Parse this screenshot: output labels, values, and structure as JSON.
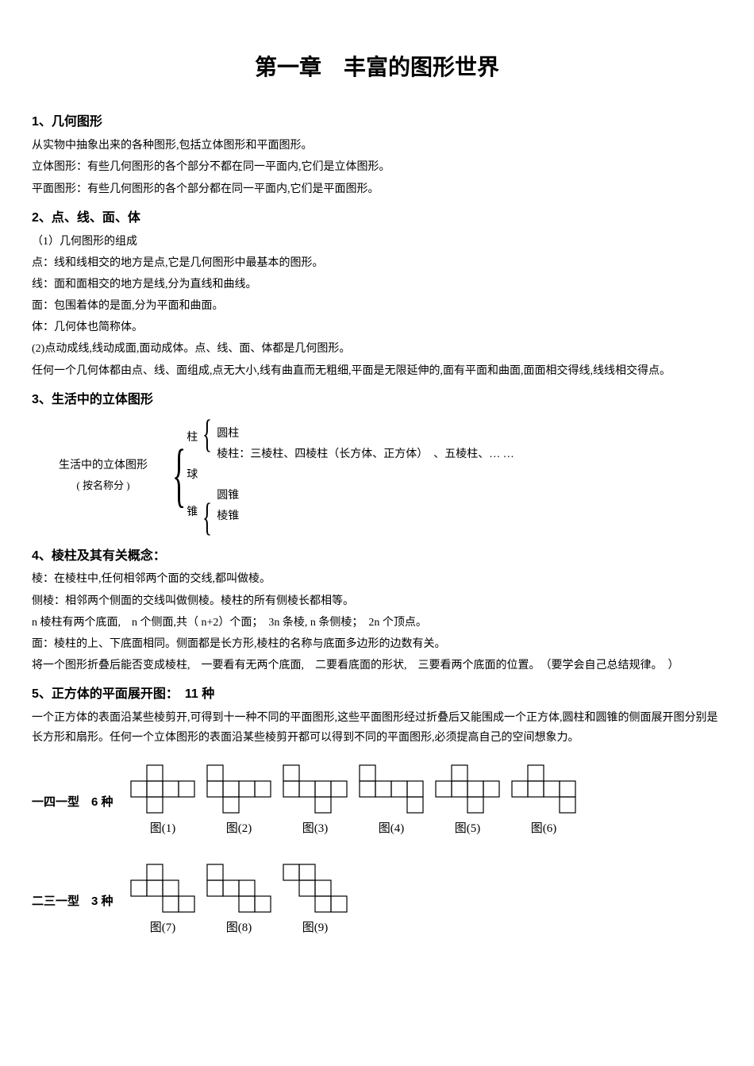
{
  "title": "第一章　丰富的图形世界",
  "s1": {
    "head": "1、几何图形",
    "p1": "从实物中抽象出来的各种图形,包括立体图形和平面图形。",
    "p2": "立体图形：有些几何图形的各个部分不都在同一平面内,它们是立体图形。",
    "p3": "平面图形：有些几何图形的各个部分都在同一平面内,它们是平面图形。"
  },
  "s2": {
    "head": "2、点、线、面、体",
    "p1": "（1）几何图形的组成",
    "p2": "点：线和线相交的地方是点,它是几何图形中最基本的图形。",
    "p3": "线：面和面相交的地方是线,分为直线和曲线。",
    "p4": "面：包围着体的是面,分为平面和曲面。",
    "p5": "体：几何体也简称体。",
    "p6": "(2)点动成线,线动成面,面动成体。点、线、面、体都是几何图形。",
    "p7": "任何一个几何体都由点、线、面组成,点无大小,线有曲直而无粗细,平面是无限延伸的,面有平面和曲面,面面相交得线,线线相交得点。"
  },
  "s3": {
    "head": "3、生活中的立体图形",
    "tree": {
      "root": "生活中的立体图形",
      "root_sub": "( 按名称分 )",
      "lvl1": [
        "柱",
        "球",
        "锥"
      ],
      "cyl": "圆柱",
      "prism": "棱柱：三棱柱、四棱柱（长方体、正方体）　、五棱柱、… …",
      "cone1": "圆锥",
      "cone2": "棱锥"
    }
  },
  "s4": {
    "head": "4、棱柱及其有关概念：",
    "p1": "棱：在棱柱中,任何相邻两个面的交线,都叫做棱。",
    "p2": "侧棱：相邻两个侧面的交线叫做侧棱。棱柱的所有侧棱长都相等。",
    "p3": "n 棱柱有两个底面,　n 个侧面,共（ n+2）个面；　3n 条棱, n 条侧棱；　2n 个顶点。",
    "p4": "面：棱柱的上、下底面相同。侧面都是长方形,棱柱的名称与底面多边形的边数有关。",
    "p5": "将一个图形折叠后能否变成棱柱,　一要看有无两个底面,　二要看底面的形状,　三要看两个底面的位置。　（要学会自己总结规律。　）"
  },
  "s5": {
    "head": "5、正方体的平面展开图：　11 种",
    "p1": "一个正方体的表面沿某些棱剪开,可得到十一种不同的平面图形,这些平面图形经过折叠后又能围成一个正方体,圆柱和圆锥的侧面展开图分别是长方形和扇形。任何一个立体图形的表面沿某些棱剪开都可以得到不同的平面图形,必须提高自己的空间想象力。",
    "row1_label": "一四一型　6 种",
    "row2_label": "二三一型　3 种",
    "captions": [
      "图(1)",
      "图(2)",
      "图(3)",
      "图(4)",
      "图(5)",
      "图(6)",
      "图(7)",
      "图(8)",
      "图(9)"
    ],
    "nets": {
      "cell": 20,
      "stroke": "#000000",
      "stroke_width": 1.2,
      "fig1": [
        [
          1,
          0
        ],
        [
          0,
          1
        ],
        [
          1,
          1
        ],
        [
          2,
          1
        ],
        [
          3,
          1
        ],
        [
          1,
          2
        ]
      ],
      "fig2": [
        [
          0,
          0
        ],
        [
          0,
          1
        ],
        [
          1,
          1
        ],
        [
          2,
          1
        ],
        [
          3,
          1
        ],
        [
          1,
          2
        ]
      ],
      "fig3": [
        [
          0,
          0
        ],
        [
          0,
          1
        ],
        [
          1,
          1
        ],
        [
          2,
          1
        ],
        [
          3,
          1
        ],
        [
          2,
          2
        ]
      ],
      "fig4": [
        [
          0,
          0
        ],
        [
          0,
          1
        ],
        [
          1,
          1
        ],
        [
          2,
          1
        ],
        [
          3,
          1
        ],
        [
          3,
          2
        ]
      ],
      "fig5": [
        [
          1,
          0
        ],
        [
          0,
          1
        ],
        [
          1,
          1
        ],
        [
          2,
          1
        ],
        [
          3,
          1
        ],
        [
          2,
          2
        ]
      ],
      "fig6": [
        [
          1,
          0
        ],
        [
          0,
          1
        ],
        [
          1,
          1
        ],
        [
          2,
          1
        ],
        [
          3,
          1
        ],
        [
          3,
          2
        ]
      ],
      "fig7": [
        [
          1,
          0
        ],
        [
          0,
          1
        ],
        [
          1,
          1
        ],
        [
          2,
          1
        ],
        [
          2,
          2
        ],
        [
          3,
          2
        ]
      ],
      "fig8": [
        [
          0,
          0
        ],
        [
          0,
          1
        ],
        [
          1,
          1
        ],
        [
          2,
          1
        ],
        [
          2,
          2
        ],
        [
          3,
          2
        ]
      ],
      "fig9": [
        [
          0,
          0
        ],
        [
          1,
          0
        ],
        [
          1,
          1
        ],
        [
          2,
          1
        ],
        [
          2,
          2
        ],
        [
          3,
          2
        ]
      ]
    }
  }
}
